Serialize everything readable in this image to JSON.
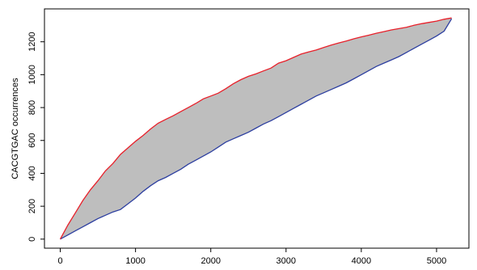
{
  "chart_data": {
    "type": "area",
    "title": "",
    "xlabel": "",
    "ylabel": "CACGTGAC occurrences",
    "xlim": [
      -210,
      5430
    ],
    "ylim": [
      -55,
      1400
    ],
    "x_ticks": [
      "0",
      "1000",
      "2000",
      "3000",
      "4000",
      "5000"
    ],
    "y_ticks": [
      "0",
      "200",
      "400",
      "600",
      "800",
      "1000",
      "1200"
    ],
    "grid": false,
    "legend": "none",
    "fill_color": "#bebebe",
    "series": [
      {
        "color": "#e8202a",
        "x": [
          0,
          100,
          200,
          300,
          400,
          500,
          600,
          700,
          800,
          900,
          1000,
          1100,
          1200,
          1300,
          1400,
          1500,
          1600,
          1700,
          1800,
          1900,
          2000,
          2100,
          2200,
          2300,
          2400,
          2500,
          2600,
          2700,
          2800,
          2900,
          3000,
          3100,
          3200,
          3300,
          3400,
          3500,
          3600,
          3700,
          3800,
          3900,
          4000,
          4100,
          4200,
          4300,
          4400,
          4500,
          4600,
          4700,
          4800,
          4900,
          5000,
          5100,
          5200
        ],
        "y": [
          0,
          85,
          160,
          235,
          300,
          355,
          415,
          460,
          515,
          555,
          595,
          630,
          670,
          705,
          728,
          750,
          775,
          800,
          825,
          853,
          870,
          888,
          915,
          945,
          970,
          990,
          1005,
          1023,
          1040,
          1070,
          1085,
          1105,
          1125,
          1138,
          1150,
          1165,
          1180,
          1193,
          1205,
          1218,
          1230,
          1240,
          1252,
          1262,
          1272,
          1280,
          1288,
          1300,
          1310,
          1318,
          1326,
          1337,
          1345
        ]
      },
      {
        "color": "#2d3fa0",
        "x": [
          0,
          100,
          200,
          300,
          400,
          500,
          600,
          700,
          800,
          900,
          1000,
          1100,
          1200,
          1300,
          1400,
          1500,
          1600,
          1700,
          1800,
          1900,
          2000,
          2100,
          2200,
          2300,
          2400,
          2500,
          2600,
          2700,
          2800,
          2900,
          3000,
          3100,
          3200,
          3300,
          3400,
          3500,
          3600,
          3700,
          3800,
          3900,
          4000,
          4100,
          4200,
          4300,
          4400,
          4500,
          4600,
          4700,
          4800,
          4900,
          5000,
          5100,
          5200
        ],
        "y": [
          0,
          25,
          50,
          75,
          100,
          125,
          145,
          165,
          180,
          215,
          250,
          290,
          325,
          355,
          375,
          400,
          425,
          455,
          480,
          505,
          530,
          560,
          590,
          610,
          630,
          650,
          675,
          700,
          720,
          745,
          770,
          795,
          820,
          845,
          870,
          890,
          910,
          930,
          950,
          975,
          1000,
          1025,
          1050,
          1070,
          1090,
          1110,
          1135,
          1160,
          1185,
          1210,
          1235,
          1265,
          1340
        ]
      }
    ]
  }
}
